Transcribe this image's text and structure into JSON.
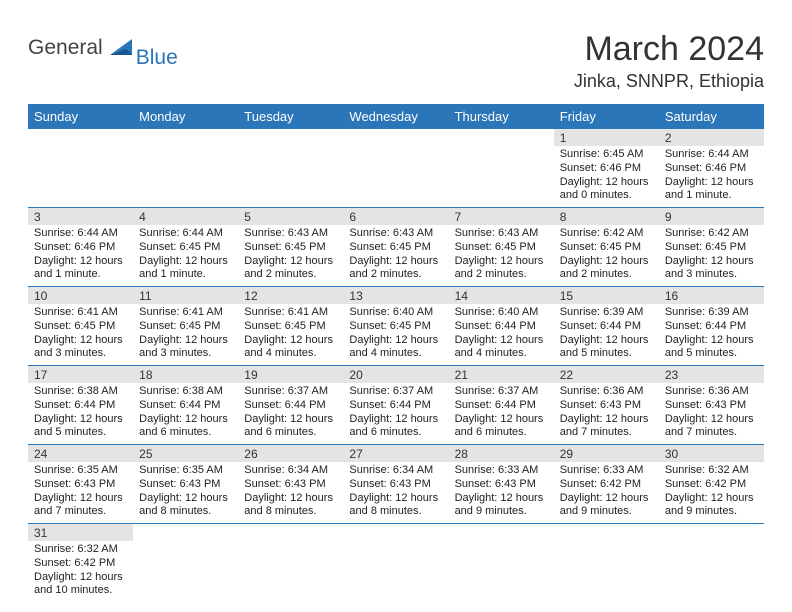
{
  "logo": {
    "general": "General",
    "blue": "Blue"
  },
  "header": {
    "title": "March 2024",
    "location": "Jinka, SNNPR, Ethiopia"
  },
  "colors": {
    "header_bg": "#2b75b9",
    "header_text": "#ffffff",
    "daynum_bg": "#e4e4e4",
    "rule": "#2b75b9",
    "body_text": "#222222"
  },
  "days_of_week": [
    "Sunday",
    "Monday",
    "Tuesday",
    "Wednesday",
    "Thursday",
    "Friday",
    "Saturday"
  ],
  "weeks": [
    [
      null,
      null,
      null,
      null,
      null,
      {
        "n": "1",
        "sr": "Sunrise: 6:45 AM",
        "ss": "Sunset: 6:46 PM",
        "d1": "Daylight: 12 hours",
        "d2": "and 0 minutes."
      },
      {
        "n": "2",
        "sr": "Sunrise: 6:44 AM",
        "ss": "Sunset: 6:46 PM",
        "d1": "Daylight: 12 hours",
        "d2": "and 1 minute."
      }
    ],
    [
      {
        "n": "3",
        "sr": "Sunrise: 6:44 AM",
        "ss": "Sunset: 6:46 PM",
        "d1": "Daylight: 12 hours",
        "d2": "and 1 minute."
      },
      {
        "n": "4",
        "sr": "Sunrise: 6:44 AM",
        "ss": "Sunset: 6:45 PM",
        "d1": "Daylight: 12 hours",
        "d2": "and 1 minute."
      },
      {
        "n": "5",
        "sr": "Sunrise: 6:43 AM",
        "ss": "Sunset: 6:45 PM",
        "d1": "Daylight: 12 hours",
        "d2": "and 2 minutes."
      },
      {
        "n": "6",
        "sr": "Sunrise: 6:43 AM",
        "ss": "Sunset: 6:45 PM",
        "d1": "Daylight: 12 hours",
        "d2": "and 2 minutes."
      },
      {
        "n": "7",
        "sr": "Sunrise: 6:43 AM",
        "ss": "Sunset: 6:45 PM",
        "d1": "Daylight: 12 hours",
        "d2": "and 2 minutes."
      },
      {
        "n": "8",
        "sr": "Sunrise: 6:42 AM",
        "ss": "Sunset: 6:45 PM",
        "d1": "Daylight: 12 hours",
        "d2": "and 2 minutes."
      },
      {
        "n": "9",
        "sr": "Sunrise: 6:42 AM",
        "ss": "Sunset: 6:45 PM",
        "d1": "Daylight: 12 hours",
        "d2": "and 3 minutes."
      }
    ],
    [
      {
        "n": "10",
        "sr": "Sunrise: 6:41 AM",
        "ss": "Sunset: 6:45 PM",
        "d1": "Daylight: 12 hours",
        "d2": "and 3 minutes."
      },
      {
        "n": "11",
        "sr": "Sunrise: 6:41 AM",
        "ss": "Sunset: 6:45 PM",
        "d1": "Daylight: 12 hours",
        "d2": "and 3 minutes."
      },
      {
        "n": "12",
        "sr": "Sunrise: 6:41 AM",
        "ss": "Sunset: 6:45 PM",
        "d1": "Daylight: 12 hours",
        "d2": "and 4 minutes."
      },
      {
        "n": "13",
        "sr": "Sunrise: 6:40 AM",
        "ss": "Sunset: 6:45 PM",
        "d1": "Daylight: 12 hours",
        "d2": "and 4 minutes."
      },
      {
        "n": "14",
        "sr": "Sunrise: 6:40 AM",
        "ss": "Sunset: 6:44 PM",
        "d1": "Daylight: 12 hours",
        "d2": "and 4 minutes."
      },
      {
        "n": "15",
        "sr": "Sunrise: 6:39 AM",
        "ss": "Sunset: 6:44 PM",
        "d1": "Daylight: 12 hours",
        "d2": "and 5 minutes."
      },
      {
        "n": "16",
        "sr": "Sunrise: 6:39 AM",
        "ss": "Sunset: 6:44 PM",
        "d1": "Daylight: 12 hours",
        "d2": "and 5 minutes."
      }
    ],
    [
      {
        "n": "17",
        "sr": "Sunrise: 6:38 AM",
        "ss": "Sunset: 6:44 PM",
        "d1": "Daylight: 12 hours",
        "d2": "and 5 minutes."
      },
      {
        "n": "18",
        "sr": "Sunrise: 6:38 AM",
        "ss": "Sunset: 6:44 PM",
        "d1": "Daylight: 12 hours",
        "d2": "and 6 minutes."
      },
      {
        "n": "19",
        "sr": "Sunrise: 6:37 AM",
        "ss": "Sunset: 6:44 PM",
        "d1": "Daylight: 12 hours",
        "d2": "and 6 minutes."
      },
      {
        "n": "20",
        "sr": "Sunrise: 6:37 AM",
        "ss": "Sunset: 6:44 PM",
        "d1": "Daylight: 12 hours",
        "d2": "and 6 minutes."
      },
      {
        "n": "21",
        "sr": "Sunrise: 6:37 AM",
        "ss": "Sunset: 6:44 PM",
        "d1": "Daylight: 12 hours",
        "d2": "and 6 minutes."
      },
      {
        "n": "22",
        "sr": "Sunrise: 6:36 AM",
        "ss": "Sunset: 6:43 PM",
        "d1": "Daylight: 12 hours",
        "d2": "and 7 minutes."
      },
      {
        "n": "23",
        "sr": "Sunrise: 6:36 AM",
        "ss": "Sunset: 6:43 PM",
        "d1": "Daylight: 12 hours",
        "d2": "and 7 minutes."
      }
    ],
    [
      {
        "n": "24",
        "sr": "Sunrise: 6:35 AM",
        "ss": "Sunset: 6:43 PM",
        "d1": "Daylight: 12 hours",
        "d2": "and 7 minutes."
      },
      {
        "n": "25",
        "sr": "Sunrise: 6:35 AM",
        "ss": "Sunset: 6:43 PM",
        "d1": "Daylight: 12 hours",
        "d2": "and 8 minutes."
      },
      {
        "n": "26",
        "sr": "Sunrise: 6:34 AM",
        "ss": "Sunset: 6:43 PM",
        "d1": "Daylight: 12 hours",
        "d2": "and 8 minutes."
      },
      {
        "n": "27",
        "sr": "Sunrise: 6:34 AM",
        "ss": "Sunset: 6:43 PM",
        "d1": "Daylight: 12 hours",
        "d2": "and 8 minutes."
      },
      {
        "n": "28",
        "sr": "Sunrise: 6:33 AM",
        "ss": "Sunset: 6:43 PM",
        "d1": "Daylight: 12 hours",
        "d2": "and 9 minutes."
      },
      {
        "n": "29",
        "sr": "Sunrise: 6:33 AM",
        "ss": "Sunset: 6:42 PM",
        "d1": "Daylight: 12 hours",
        "d2": "and 9 minutes."
      },
      {
        "n": "30",
        "sr": "Sunrise: 6:32 AM",
        "ss": "Sunset: 6:42 PM",
        "d1": "Daylight: 12 hours",
        "d2": "and 9 minutes."
      }
    ],
    [
      {
        "n": "31",
        "sr": "Sunrise: 6:32 AM",
        "ss": "Sunset: 6:42 PM",
        "d1": "Daylight: 12 hours",
        "d2": "and 10 minutes."
      },
      null,
      null,
      null,
      null,
      null,
      null
    ]
  ]
}
